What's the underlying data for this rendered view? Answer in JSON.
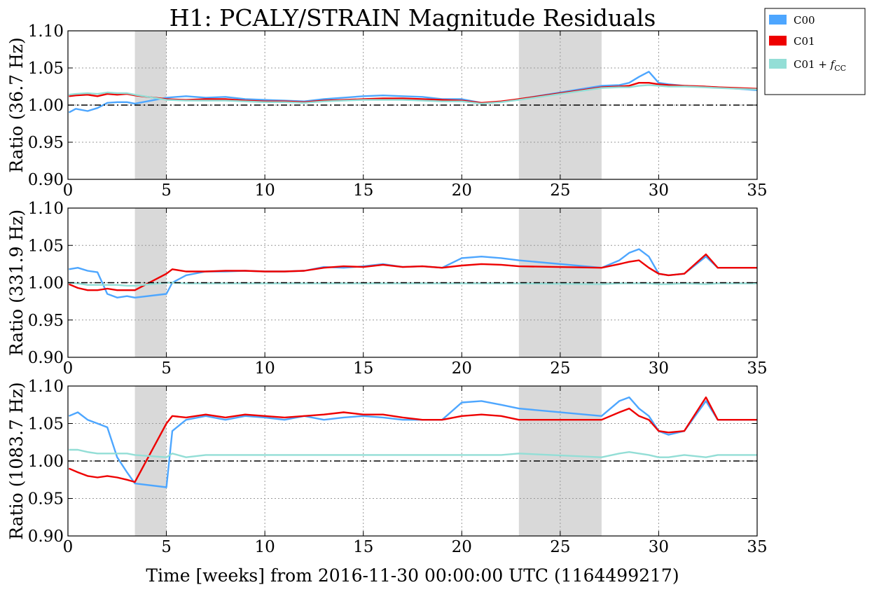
{
  "chart_data": {
    "type": "line",
    "title": "H1: PCALY/STRAIN Magnitude Residuals",
    "xlabel": "Time [weeks] from 2016-11-30 00:00:00 UTC (1164499217)",
    "xlim": [
      0,
      35
    ],
    "x_ticks": [
      "0",
      "5",
      "10",
      "15",
      "20",
      "25",
      "30",
      "35"
    ],
    "y_ticks": [
      "0.90",
      "0.95",
      "1.00",
      "1.05",
      "1.10"
    ],
    "grid": true,
    "legend_position": "outside-top-right",
    "reference_line": 1.0,
    "shaded_spans": [
      [
        3.4,
        5.0
      ],
      [
        22.9,
        27.1
      ]
    ],
    "colors": {
      "C00": "#4da6ff",
      "C01": "#ee0000",
      "C01 + f_CC": "#93ded6",
      "span": "#d9d9d9",
      "reference": "#000000"
    },
    "legend": [
      {
        "label": "C00",
        "color": "#4da6ff"
      },
      {
        "label": "C01",
        "color": "#ee0000"
      },
      {
        "label": "C01 + ",
        "sym": "f",
        "sub": "CC",
        "color": "#93ded6"
      }
    ],
    "panels": [
      {
        "ylabel": "Ratio (36.7 Hz)",
        "ylim": [
          0.9,
          1.1
        ],
        "series": [
          {
            "name": "C00",
            "x": [
              0.05,
              0.4,
              1.0,
              1.5,
              2.0,
              2.5,
              3.0,
              3.4,
              5.0,
              6.0,
              7.0,
              8.0,
              9.0,
              10.0,
              11.0,
              12.0,
              13.0,
              14.0,
              15.0,
              16.0,
              17.0,
              18.0,
              19.0,
              20.0,
              21.0,
              22.0,
              22.9,
              27.1,
              28.0,
              28.5,
              29.0,
              29.5,
              30.0,
              30.5,
              31.3,
              32.3,
              33.0,
              34.0,
              35.0
            ],
            "y": [
              0.99,
              0.995,
              0.992,
              0.996,
              1.003,
              1.004,
              1.004,
              1.002,
              1.01,
              1.012,
              1.01,
              1.011,
              1.008,
              1.007,
              1.006,
              1.005,
              1.008,
              1.01,
              1.012,
              1.013,
              1.012,
              1.011,
              1.008,
              1.008,
              1.003,
              1.004,
              1.008,
              1.026,
              1.027,
              1.03,
              1.038,
              1.045,
              1.03,
              1.028,
              1.026,
              1.025,
              1.024,
              1.022,
              1.02
            ]
          },
          {
            "name": "C01",
            "x": [
              0.05,
              0.4,
              1.0,
              1.5,
              2.0,
              2.5,
              3.0,
              3.4,
              5.0,
              6.0,
              7.0,
              8.0,
              9.0,
              10.0,
              11.0,
              12.0,
              13.0,
              14.0,
              15.0,
              16.0,
              17.0,
              18.0,
              19.0,
              20.0,
              21.0,
              22.0,
              22.9,
              27.1,
              28.0,
              28.5,
              29.0,
              29.5,
              30.0,
              30.5,
              31.3,
              32.3,
              33.0,
              34.0,
              35.0
            ],
            "y": [
              1.012,
              1.013,
              1.014,
              1.012,
              1.015,
              1.014,
              1.015,
              1.013,
              1.008,
              1.007,
              1.008,
              1.008,
              1.006,
              1.005,
              1.005,
              1.004,
              1.006,
              1.007,
              1.008,
              1.009,
              1.009,
              1.008,
              1.007,
              1.006,
              1.003,
              1.005,
              1.008,
              1.024,
              1.025,
              1.026,
              1.03,
              1.03,
              1.028,
              1.027,
              1.026,
              1.025,
              1.024,
              1.023,
              1.022
            ]
          },
          {
            "name": "C01 + f_CC",
            "x": [
              0.05,
              0.4,
              1.0,
              1.5,
              2.0,
              2.5,
              3.0,
              3.4,
              5.0,
              6.0,
              7.0,
              8.0,
              9.0,
              10.0,
              11.0,
              12.0,
              13.0,
              14.0,
              15.0,
              16.0,
              17.0,
              18.0,
              19.0,
              20.0,
              21.0,
              22.0,
              22.9,
              27.1,
              28.0,
              28.5,
              29.0,
              29.5,
              30.0,
              30.5,
              31.3,
              32.3,
              33.0,
              34.0,
              35.0
            ],
            "y": [
              1.014,
              1.015,
              1.016,
              1.015,
              1.017,
              1.016,
              1.016,
              1.014,
              1.007,
              1.006,
              1.006,
              1.006,
              1.005,
              1.004,
              1.004,
              1.003,
              1.005,
              1.006,
              1.007,
              1.007,
              1.007,
              1.006,
              1.005,
              1.005,
              1.002,
              1.004,
              1.007,
              1.023,
              1.024,
              1.024,
              1.026,
              1.027,
              1.026,
              1.025,
              1.025,
              1.024,
              1.023,
              1.022,
              1.021
            ]
          }
        ]
      },
      {
        "ylabel": "Ratio (331.9 Hz)",
        "ylim": [
          0.9,
          1.1
        ],
        "series": [
          {
            "name": "C00",
            "x": [
              0.05,
              0.5,
              1.0,
              1.5,
              2.0,
              2.5,
              3.0,
              3.4,
              5.0,
              5.3,
              6.0,
              7.0,
              8.0,
              9.0,
              10.0,
              11.0,
              12.0,
              13.0,
              14.0,
              15.0,
              16.0,
              17.0,
              18.0,
              19.0,
              20.0,
              21.0,
              22.0,
              22.9,
              27.1,
              28.0,
              28.5,
              29.0,
              29.5,
              30.0,
              30.5,
              31.3,
              32.4,
              33.0,
              34.0,
              35.0
            ],
            "y": [
              1.018,
              1.02,
              1.016,
              1.014,
              0.985,
              0.98,
              0.982,
              0.98,
              0.985,
              1.0,
              1.01,
              1.015,
              1.015,
              1.016,
              1.015,
              1.015,
              1.016,
              1.021,
              1.02,
              1.022,
              1.025,
              1.021,
              1.022,
              1.02,
              1.033,
              1.035,
              1.033,
              1.03,
              1.02,
              1.03,
              1.04,
              1.045,
              1.035,
              1.012,
              1.01,
              1.012,
              1.035,
              1.02,
              1.02,
              1.02
            ]
          },
          {
            "name": "C01",
            "x": [
              0.05,
              0.5,
              1.0,
              1.5,
              2.0,
              2.5,
              3.0,
              3.4,
              5.0,
              5.3,
              6.0,
              7.0,
              8.0,
              9.0,
              10.0,
              11.0,
              12.0,
              13.0,
              14.0,
              15.0,
              16.0,
              17.0,
              18.0,
              19.0,
              20.0,
              21.0,
              22.0,
              22.9,
              27.1,
              28.0,
              28.5,
              29.0,
              29.5,
              30.0,
              30.5,
              31.3,
              32.4,
              33.0,
              34.0,
              35.0
            ],
            "y": [
              0.998,
              0.993,
              0.99,
              0.99,
              0.992,
              0.99,
              0.99,
              0.99,
              1.012,
              1.018,
              1.015,
              1.015,
              1.016,
              1.016,
              1.015,
              1.015,
              1.016,
              1.02,
              1.022,
              1.021,
              1.024,
              1.021,
              1.022,
              1.02,
              1.023,
              1.025,
              1.024,
              1.022,
              1.02,
              1.025,
              1.028,
              1.03,
              1.02,
              1.012,
              1.01,
              1.012,
              1.038,
              1.02,
              1.02,
              1.02
            ]
          },
          {
            "name": "C01 + f_CC",
            "x": [
              0.05,
              0.5,
              1.0,
              1.5,
              2.0,
              2.5,
              3.0,
              3.4,
              5.0,
              5.3,
              6.0,
              7.0,
              8.0,
              9.0,
              10.0,
              11.0,
              12.0,
              13.0,
              14.0,
              15.0,
              16.0,
              17.0,
              18.0,
              19.0,
              20.0,
              21.0,
              22.0,
              22.9,
              27.1,
              28.0,
              28.5,
              29.0,
              29.5,
              30.0,
              30.5,
              31.3,
              32.4,
              33.0,
              34.0,
              35.0
            ],
            "y": [
              1.0,
              0.999,
              0.997,
              0.997,
              0.997,
              0.997,
              0.996,
              0.996,
              1.0,
              1.0,
              0.999,
              0.999,
              0.999,
              0.999,
              0.999,
              0.999,
              0.999,
              0.999,
              0.999,
              0.999,
              0.999,
              0.999,
              0.999,
              0.999,
              0.999,
              0.999,
              0.999,
              0.999,
              0.998,
              0.999,
              0.999,
              0.999,
              0.999,
              0.998,
              0.998,
              0.999,
              0.998,
              0.999,
              0.999,
              0.999
            ]
          }
        ]
      },
      {
        "ylabel": "Ratio (1083.7 Hz)",
        "ylim": [
          0.9,
          1.1
        ],
        "series": [
          {
            "name": "C00",
            "x": [
              0.05,
              0.5,
              1.0,
              1.5,
              2.0,
              2.5,
              3.0,
              3.4,
              5.0,
              5.3,
              6.0,
              7.0,
              8.0,
              9.0,
              10.0,
              11.0,
              12.0,
              13.0,
              14.0,
              15.0,
              16.0,
              17.0,
              18.0,
              19.0,
              20.0,
              21.0,
              22.0,
              22.9,
              27.1,
              28.0,
              28.5,
              29.0,
              29.5,
              30.0,
              30.5,
              31.3,
              32.4,
              33.0,
              34.0,
              35.0
            ],
            "y": [
              1.06,
              1.065,
              1.055,
              1.05,
              1.045,
              1.005,
              0.985,
              0.97,
              0.965,
              1.04,
              1.055,
              1.06,
              1.055,
              1.06,
              1.058,
              1.055,
              1.06,
              1.055,
              1.058,
              1.06,
              1.058,
              1.055,
              1.055,
              1.055,
              1.078,
              1.08,
              1.075,
              1.07,
              1.06,
              1.08,
              1.085,
              1.07,
              1.06,
              1.04,
              1.035,
              1.04,
              1.08,
              1.055,
              1.055,
              1.055
            ]
          },
          {
            "name": "C01",
            "x": [
              0.05,
              0.5,
              1.0,
              1.5,
              2.0,
              2.5,
              3.0,
              3.4,
              5.0,
              5.3,
              6.0,
              7.0,
              8.0,
              9.0,
              10.0,
              11.0,
              12.0,
              13.0,
              14.0,
              15.0,
              16.0,
              17.0,
              18.0,
              19.0,
              20.0,
              21.0,
              22.0,
              22.9,
              27.1,
              28.0,
              28.5,
              29.0,
              29.5,
              30.0,
              30.5,
              31.3,
              32.4,
              33.0,
              34.0,
              35.0
            ],
            "y": [
              0.99,
              0.985,
              0.98,
              0.978,
              0.98,
              0.978,
              0.975,
              0.972,
              1.05,
              1.06,
              1.058,
              1.062,
              1.058,
              1.062,
              1.06,
              1.058,
              1.06,
              1.062,
              1.065,
              1.062,
              1.062,
              1.058,
              1.055,
              1.055,
              1.06,
              1.062,
              1.06,
              1.055,
              1.055,
              1.065,
              1.07,
              1.06,
              1.055,
              1.04,
              1.038,
              1.04,
              1.085,
              1.055,
              1.055,
              1.055
            ]
          },
          {
            "name": "C01 + f_CC",
            "x": [
              0.05,
              0.5,
              1.0,
              1.5,
              2.0,
              2.5,
              3.0,
              3.4,
              5.0,
              5.3,
              6.0,
              7.0,
              8.0,
              9.0,
              10.0,
              11.0,
              12.0,
              13.0,
              14.0,
              15.0,
              16.0,
              17.0,
              18.0,
              19.0,
              20.0,
              21.0,
              22.0,
              22.9,
              27.1,
              28.0,
              28.5,
              29.0,
              29.5,
              30.0,
              30.5,
              31.3,
              32.4,
              33.0,
              34.0,
              35.0
            ],
            "y": [
              1.015,
              1.015,
              1.012,
              1.01,
              1.01,
              1.01,
              1.01,
              1.008,
              1.005,
              1.01,
              1.005,
              1.008,
              1.008,
              1.008,
              1.008,
              1.008,
              1.008,
              1.008,
              1.008,
              1.008,
              1.008,
              1.008,
              1.008,
              1.008,
              1.008,
              1.008,
              1.008,
              1.01,
              1.005,
              1.01,
              1.012,
              1.01,
              1.008,
              1.005,
              1.005,
              1.008,
              1.005,
              1.008,
              1.008,
              1.008
            ]
          }
        ]
      }
    ]
  }
}
